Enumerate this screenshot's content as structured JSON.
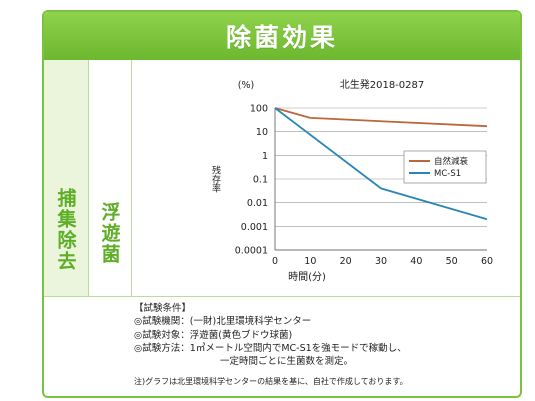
{
  "header": {
    "title": "除菌効果"
  },
  "labels": {
    "category": "捕集除去",
    "target": "浮遊菌"
  },
  "chart_data": {
    "type": "line",
    "source_note": "北生発2018-0287",
    "y_unit": "(%)",
    "ylabel": "残存率",
    "xlabel": "時間(分)",
    "y_scale": "log",
    "ylim": [
      0.0001,
      100
    ],
    "xlim": [
      0,
      60
    ],
    "x_ticks": [
      0,
      10,
      20,
      30,
      40,
      50,
      60
    ],
    "y_ticks": [
      {
        "value": 100,
        "label": "100"
      },
      {
        "value": 10,
        "label": "10"
      },
      {
        "value": 1,
        "label": "1"
      },
      {
        "value": 0.1,
        "label": "0.1"
      },
      {
        "value": 0.01,
        "label": "0.01"
      },
      {
        "value": 0.001,
        "label": "0.001"
      },
      {
        "value": 0.0001,
        "label": "0.0001"
      }
    ],
    "legend_position": "right",
    "series": [
      {
        "name": "自然減衰",
        "color": "#b9673b",
        "x": [
          0,
          10,
          60
        ],
        "y": [
          100,
          38,
          17
        ]
      },
      {
        "name": "MC-S1",
        "color": "#2a86b6",
        "x": [
          0,
          30,
          60
        ],
        "y": [
          100,
          0.04,
          0.002
        ]
      }
    ]
  },
  "conditions": {
    "title": "【試験条件】",
    "lines": [
      "◎試験機関：(一財)北里環境科学センター",
      "◎試験対象：浮遊菌(黄色ブドウ球菌)",
      "◎試験方法：1㎥メートル空間内でMC-S1を強モードで稼動し、"
    ],
    "continuation": "一定時間ごとに生菌数を測定。",
    "note": "注)グラフは北里環境科学センターの結果を基に、自社で作成しております。"
  }
}
